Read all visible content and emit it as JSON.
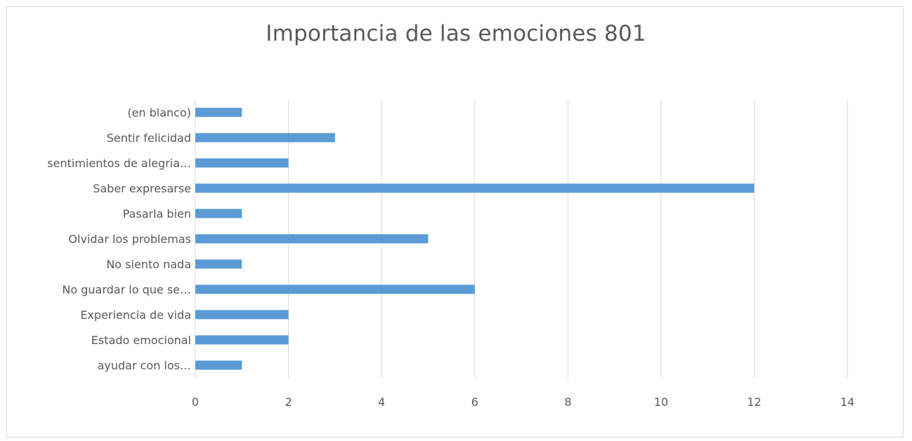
{
  "chart_data": {
    "type": "bar",
    "orientation": "horizontal",
    "title": "Importancia de las emociones 801",
    "xlabel": "",
    "ylabel": "",
    "categories": [
      "(en blanco)",
      "Sentir felicidad",
      "sentimientos de alegria…",
      "Saber expresarse",
      "Pasarla bien",
      "Olvidar los problemas",
      "No siento nada",
      "No guardar lo que se…",
      "Experiencia de vida",
      "Estado emocional",
      "ayudar con los…"
    ],
    "values": [
      1,
      3,
      2,
      12,
      1,
      5,
      1,
      6,
      2,
      2,
      1
    ],
    "xlim": [
      0,
      14
    ],
    "xticks": [
      0,
      2,
      4,
      6,
      8,
      10,
      12,
      14
    ],
    "grid": true,
    "legend": "none",
    "bar_color": "#5b9bd5",
    "grid_color": "#d9d9d9"
  }
}
